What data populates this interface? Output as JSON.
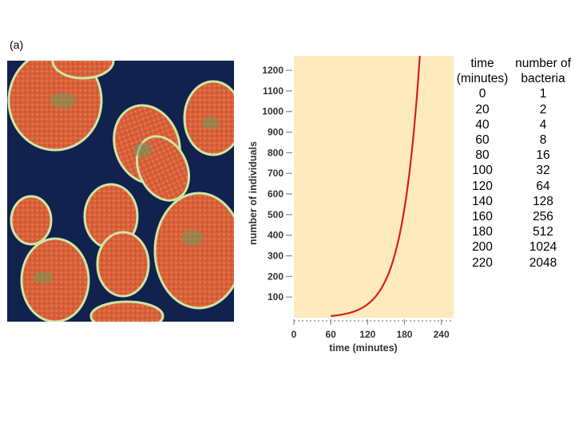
{
  "figure": {
    "panel_label": "(a)"
  },
  "colors": {
    "plot_background": "#fdebbd",
    "curve": "#d62020",
    "micrograph_background": "#12224e",
    "cell_fill": "#d9603a",
    "cell_rim": "#cde6a6"
  },
  "chart_data": {
    "type": "line",
    "xlabel": "time (minutes)",
    "ylabel": "number of individuals",
    "xlim": [
      0,
      260
    ],
    "ylim": [
      0,
      1270
    ],
    "x_ticks": [
      0,
      60,
      120,
      180,
      240
    ],
    "y_ticks": [
      100,
      200,
      300,
      400,
      500,
      600,
      700,
      800,
      900,
      1000,
      1100,
      1200
    ],
    "x_tick_labels": [
      "0",
      "60",
      "120",
      "180",
      "240"
    ],
    "y_tick_labels": [
      "100",
      "200",
      "300",
      "400",
      "500",
      "600",
      "700",
      "800",
      "900",
      "1000",
      "1100",
      "1200"
    ],
    "grid": false,
    "series": [
      {
        "x": [
          60,
          80,
          100,
          120,
          140,
          160,
          180,
          200,
          205
        ],
        "y": [
          8,
          16,
          32,
          64,
          128,
          256,
          512,
          1024,
          1270
        ]
      }
    ]
  },
  "table": {
    "headers": [
      [
        "time",
        "(minutes)"
      ],
      [
        "number of",
        "bacteria"
      ]
    ],
    "rows": [
      [
        "0",
        "1"
      ],
      [
        "20",
        "2"
      ],
      [
        "40",
        "4"
      ],
      [
        "60",
        "8"
      ],
      [
        "80",
        "16"
      ],
      [
        "100",
        "32"
      ],
      [
        "120",
        "64"
      ],
      [
        "140",
        "128"
      ],
      [
        "160",
        "256"
      ],
      [
        "180",
        "512"
      ],
      [
        "200",
        "1024"
      ],
      [
        "220",
        "2048"
      ]
    ]
  }
}
